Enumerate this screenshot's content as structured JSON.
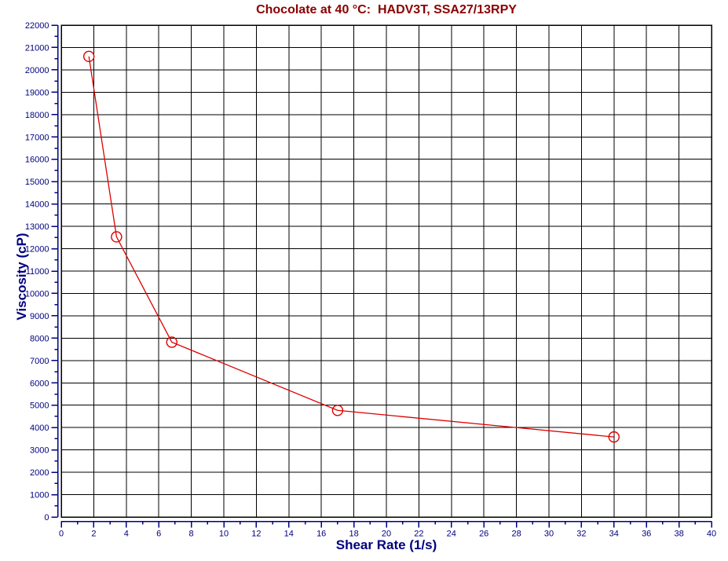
{
  "chart_data": {
    "type": "line",
    "title": "Chocolate at 40 °C:  HADV3T, SSA27/13RPY",
    "xlabel": "Shear Rate (1/s)",
    "ylabel": "Viscosity (cP)",
    "xlim": [
      0,
      40
    ],
    "ylim": [
      0,
      22000
    ],
    "x_ticks": [
      0,
      2,
      4,
      6,
      8,
      10,
      12,
      14,
      16,
      18,
      20,
      22,
      24,
      26,
      28,
      30,
      32,
      34,
      36,
      38,
      40
    ],
    "y_ticks": [
      0,
      1000,
      2000,
      3000,
      4000,
      5000,
      6000,
      7000,
      8000,
      9000,
      10000,
      11000,
      12000,
      13000,
      14000,
      15000,
      16000,
      17000,
      18000,
      19000,
      20000,
      21000,
      22000
    ],
    "x_minor_step": 1,
    "y_minor_step": 500,
    "grid": true,
    "legend": "none",
    "series": [
      {
        "name": "viscosity",
        "marker": "open-circle",
        "color": "#dd0000",
        "x": [
          1.7,
          3.4,
          6.8,
          17,
          34
        ],
        "y": [
          20600,
          12530,
          7820,
          4770,
          3580
        ]
      }
    ],
    "colors": {
      "title": "#8b0000",
      "axis": "#000080",
      "grid": "#000000",
      "frame": "#000000",
      "background": "#ffffff"
    }
  }
}
